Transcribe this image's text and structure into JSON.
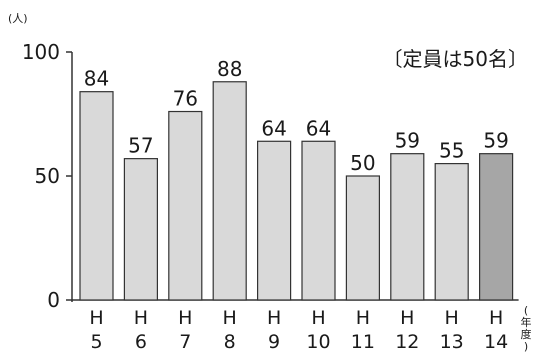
{
  "chart_data": {
    "type": "bar",
    "categories": [
      [
        "H",
        "5"
      ],
      [
        "H",
        "6"
      ],
      [
        "H",
        "7"
      ],
      [
        "H",
        "8"
      ],
      [
        "H",
        "9"
      ],
      [
        "H",
        "10"
      ],
      [
        "H",
        "11"
      ],
      [
        "H",
        "12"
      ],
      [
        "H",
        "13"
      ],
      [
        "H",
        "14"
      ]
    ],
    "values": [
      84,
      57,
      76,
      88,
      64,
      64,
      50,
      59,
      55,
      59
    ],
    "highlight_index": 9,
    "ylabel": "(人)",
    "xlabel": "(年度)",
    "annotation": "〔定員は50名〕",
    "ylim": [
      0,
      100
    ],
    "yticks": [
      0,
      50,
      100
    ],
    "grid": false,
    "colors": {
      "bar": "#d9d9d9",
      "bar_highlight": "#a6a6a6",
      "bar_stroke": "#333333",
      "axis": "#333333"
    }
  }
}
